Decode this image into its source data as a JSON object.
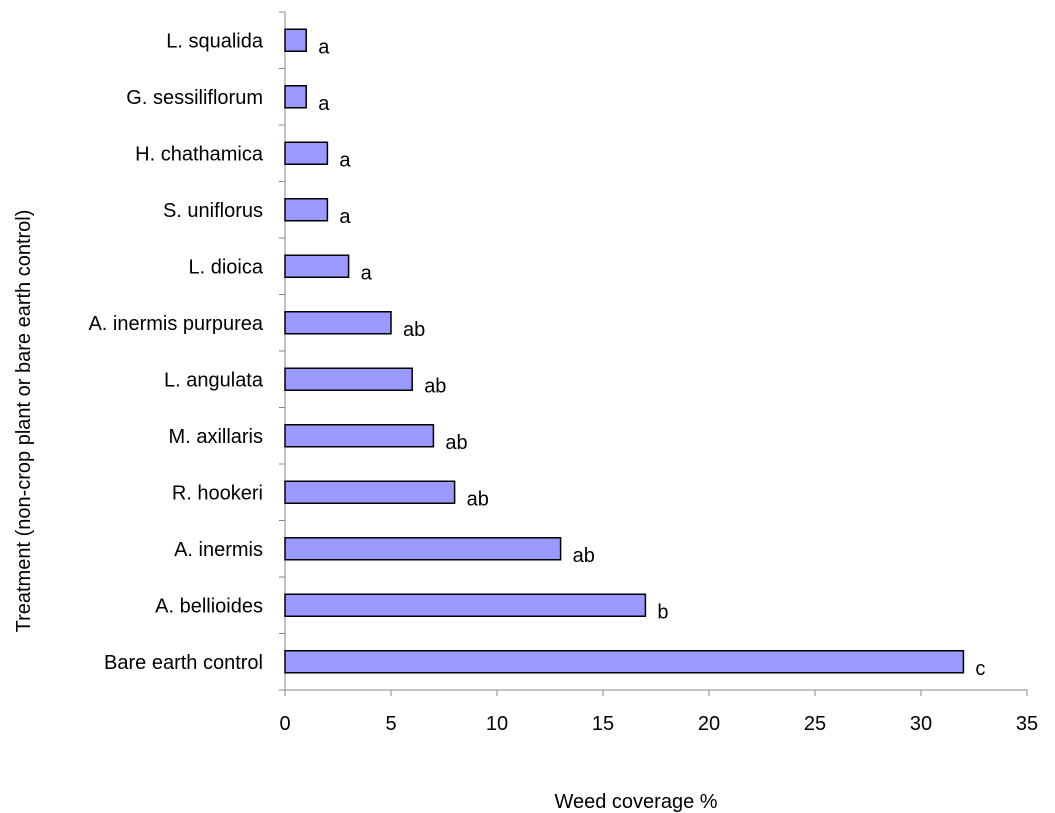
{
  "chart_data": {
    "type": "bar",
    "orientation": "horizontal",
    "categories": [
      "L. squalida",
      "G. sessiliflorum",
      "H. chathamica",
      "S. uniflorus",
      "L. dioica",
      "A. inermis purpurea",
      "L. angulata",
      "M. axillaris",
      "R. hookeri",
      "A. inermis",
      "A. bellioides",
      "Bare earth control"
    ],
    "values": [
      1,
      1,
      2,
      2,
      3,
      5,
      6,
      7,
      8,
      13,
      17,
      32
    ],
    "significance": [
      "a",
      "a",
      "a",
      "a",
      "a",
      "ab",
      "ab",
      "ab",
      "ab",
      "ab",
      "b",
      "c"
    ],
    "xlabel": "Weed coverage %",
    "ylabel": "Treatment (non-crop plant or bare earth control)",
    "xlim": [
      0,
      35
    ],
    "xticks": [
      0,
      5,
      10,
      15,
      20,
      25,
      30,
      35
    ],
    "bar_color": "#9999ff",
    "bar_edge_color": "#000000",
    "grid": false,
    "legend": "none"
  }
}
